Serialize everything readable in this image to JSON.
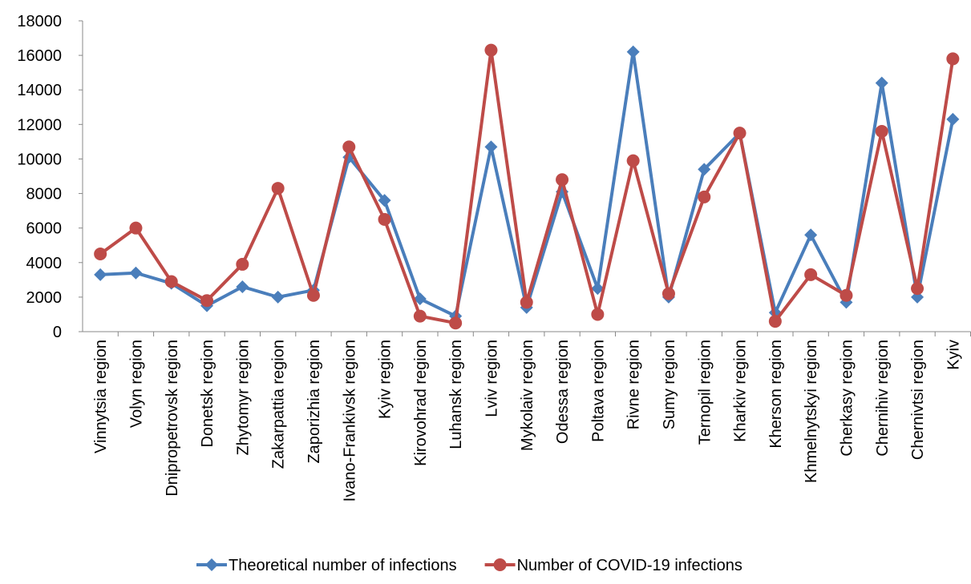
{
  "chart_data": {
    "type": "line",
    "categories": [
      "Vinnytsia region",
      "Volyn region",
      "Dnipropetrovsk region",
      "Donetsk region",
      "Zhytomyr region",
      "Zakarpattia region",
      "Zaporizhia region",
      "Ivano-Frankivsk region",
      "Kyiv region",
      "Kirovohrad region",
      "Luhansk region",
      "Lviv region",
      "Mykolaiv region",
      "Odessa region",
      "Poltava region",
      "Rivne region",
      "Sumy region",
      "Ternopil region",
      "Kharkiv region",
      "Kherson region",
      "Khmelnytskyi region",
      "Cherkasy region",
      "Chernihiv region",
      "Chernivtsi region",
      "Kyiv"
    ],
    "series": [
      {
        "name": "Theoretical number of infections",
        "color": "#4a7ebb",
        "marker": "diamond",
        "values": [
          3300,
          3400,
          2800,
          1500,
          2600,
          2000,
          2400,
          10100,
          7600,
          1900,
          900,
          10700,
          1400,
          8100,
          2500,
          16200,
          2000,
          9400,
          11500,
          1100,
          5600,
          1700,
          14400,
          2000,
          12300
        ]
      },
      {
        "name": "Number of COVID-19 infections",
        "color": "#be4b48",
        "marker": "circle",
        "values": [
          4500,
          6000,
          2900,
          1800,
          3900,
          8300,
          2100,
          10700,
          6500,
          900,
          500,
          16300,
          1700,
          8800,
          1000,
          9900,
          2200,
          7800,
          11500,
          600,
          3300,
          2100,
          11600,
          2500,
          15800
        ]
      }
    ],
    "ylim": [
      0,
      18000
    ],
    "yticks": [
      0,
      2000,
      4000,
      6000,
      8000,
      10000,
      12000,
      14000,
      16000,
      18000
    ],
    "grid": false,
    "legend": "bottom"
  }
}
